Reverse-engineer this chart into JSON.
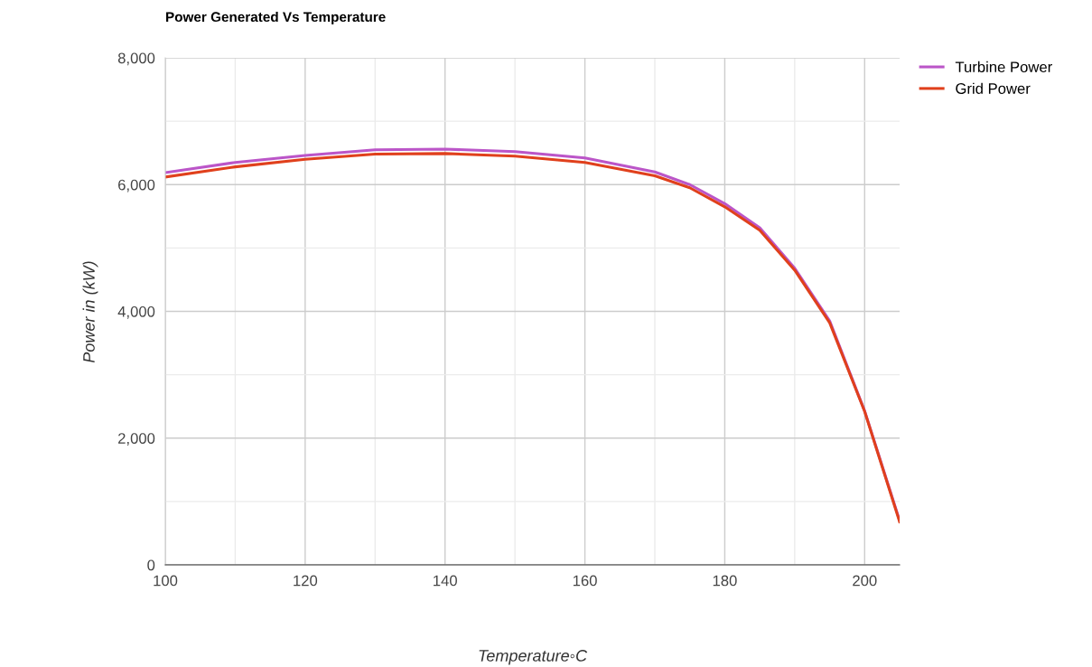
{
  "chart_data": {
    "type": "line",
    "title": "Power Generated Vs Temperature",
    "xlabel": "Temperature◦C",
    "ylabel": "Power in (kW)",
    "x": [
      100,
      110,
      120,
      130,
      140,
      150,
      160,
      170,
      175,
      180,
      185,
      190,
      195,
      200,
      205
    ],
    "series": [
      {
        "name": "Turbine Power",
        "color": "#bb55c8",
        "values": [
          6190,
          6350,
          6460,
          6550,
          6560,
          6520,
          6420,
          6200,
          6000,
          5700,
          5320,
          4680,
          3850,
          2430,
          700
        ]
      },
      {
        "name": "Grid Power",
        "color": "#e0401c",
        "values": [
          6120,
          6280,
          6400,
          6480,
          6490,
          6450,
          6350,
          6140,
          5950,
          5650,
          5280,
          4650,
          3820,
          2420,
          680
        ]
      }
    ],
    "xlim": [
      100,
      205
    ],
    "ylim": [
      0,
      8000
    ],
    "xticks": [
      100,
      {
        "value": 110,
        "label": null
      },
      120,
      {
        "value": 130,
        "label": null
      },
      140,
      {
        "value": 150,
        "label": null
      },
      160,
      {
        "value": 170,
        "label": null
      },
      180,
      {
        "value": 190,
        "label": null
      },
      200
    ],
    "yticks": [
      {
        "value": 0,
        "label": "0"
      },
      {
        "value": 1000,
        "label": null
      },
      {
        "value": 2000,
        "label": "2,000"
      },
      {
        "value": 3000,
        "label": null
      },
      {
        "value": 4000,
        "label": "4,000"
      },
      {
        "value": 5000,
        "label": null
      },
      {
        "value": 6000,
        "label": "6,000"
      },
      {
        "value": 7000,
        "label": null
      },
      {
        "value": 8000,
        "label": "8,000"
      }
    ],
    "grid": true,
    "legend": "top right",
    "marker": "none",
    "line_style": "solid"
  }
}
